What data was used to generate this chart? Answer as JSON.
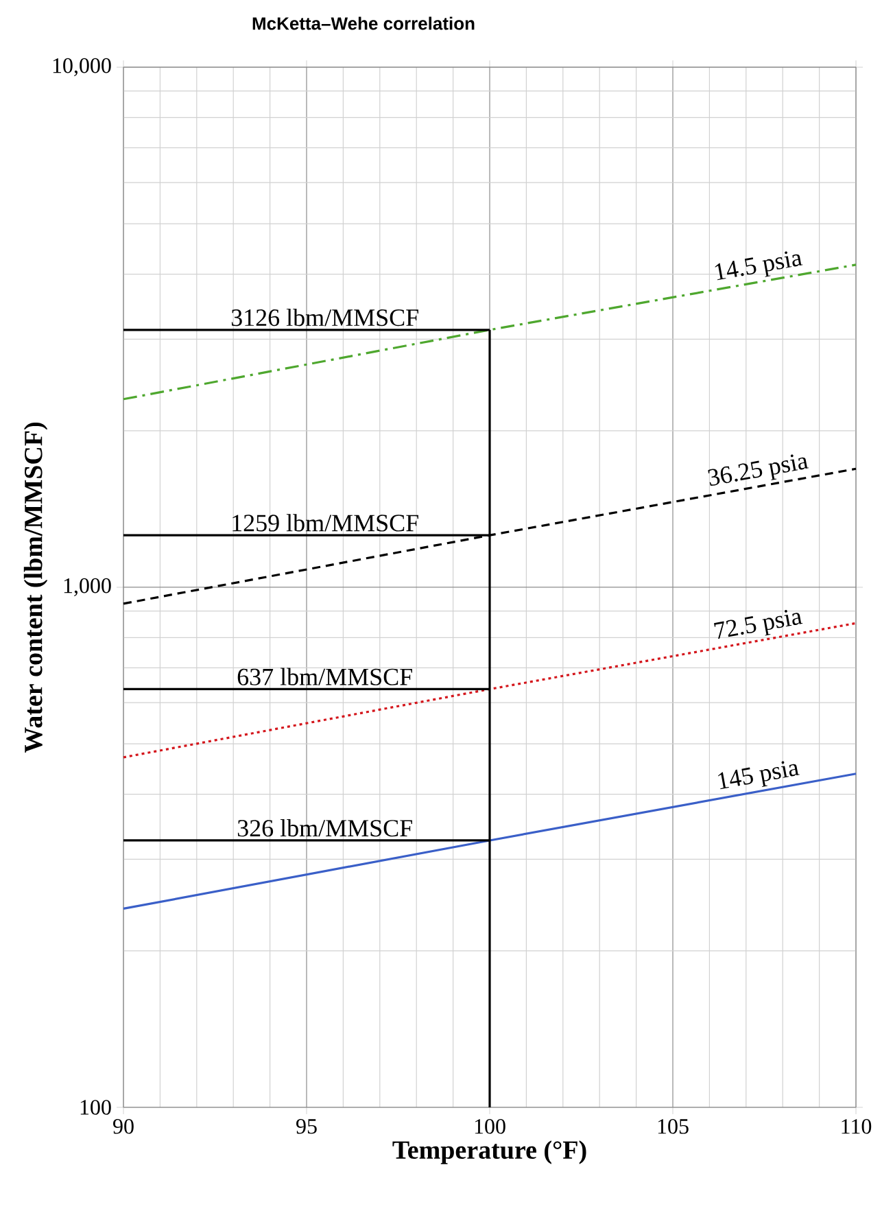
{
  "chart_data": {
    "type": "line",
    "title": "McKetta–Wehe correlation",
    "xlabel": "Temperature (°F)",
    "ylabel": "Water content (lbm/MMSCF)",
    "series": [
      {
        "name": "14.5 psia",
        "color": "#4ea72e",
        "line_style": "dashdot",
        "x": [
          90,
          100,
          110
        ],
        "values": [
          2300,
          3126,
          4170
        ]
      },
      {
        "name": "36.25 psia",
        "color": "#000000",
        "line_style": "dashed",
        "x": [
          90,
          100,
          110
        ],
        "values": [
          930,
          1259,
          1690
        ]
      },
      {
        "name": "72.5 psia",
        "color": "#d4161c",
        "line_style": "dotted",
        "x": [
          90,
          100,
          110
        ],
        "values": [
          471,
          637,
          853
        ]
      },
      {
        "name": "145 psia",
        "color": "#3a5fc8",
        "line_style": "solid",
        "x": [
          90,
          100,
          110
        ],
        "values": [
          241,
          326,
          438
        ]
      },
      {
        "name": "3126 lbm/MMSCF",
        "color": "#000000",
        "line_style": "solid",
        "x": [
          90,
          100
        ],
        "values": [
          3126,
          3126
        ]
      },
      {
        "name": "1259 lbm/MMSCF",
        "color": "#000000",
        "line_style": "solid",
        "x": [
          90,
          100
        ],
        "values": [
          1259,
          1259
        ]
      },
      {
        "name": "637 lbm/MMSCF",
        "color": "#000000",
        "line_style": "solid",
        "x": [
          90,
          100
        ],
        "values": [
          637,
          637
        ]
      },
      {
        "name": "326 lbm/MMSCF",
        "color": "#000000",
        "line_style": "solid",
        "x": [
          90,
          100
        ],
        "values": [
          326,
          326
        ]
      },
      {
        "color": "#000000",
        "line_style": "solid",
        "x": [
          100,
          100
        ],
        "values": [
          100,
          3126
        ]
      }
    ],
    "xlim": [
      90,
      110
    ],
    "xticks": [
      90,
      95,
      100,
      105,
      110
    ],
    "ylim": [
      100,
      10000
    ],
    "yticks": [
      {
        "value": 100,
        "label": "100"
      },
      {
        "value": 1000,
        "label": "1,000"
      },
      {
        "value": 10000,
        "label": "10,000"
      }
    ],
    "log": "y",
    "grid": true
  }
}
